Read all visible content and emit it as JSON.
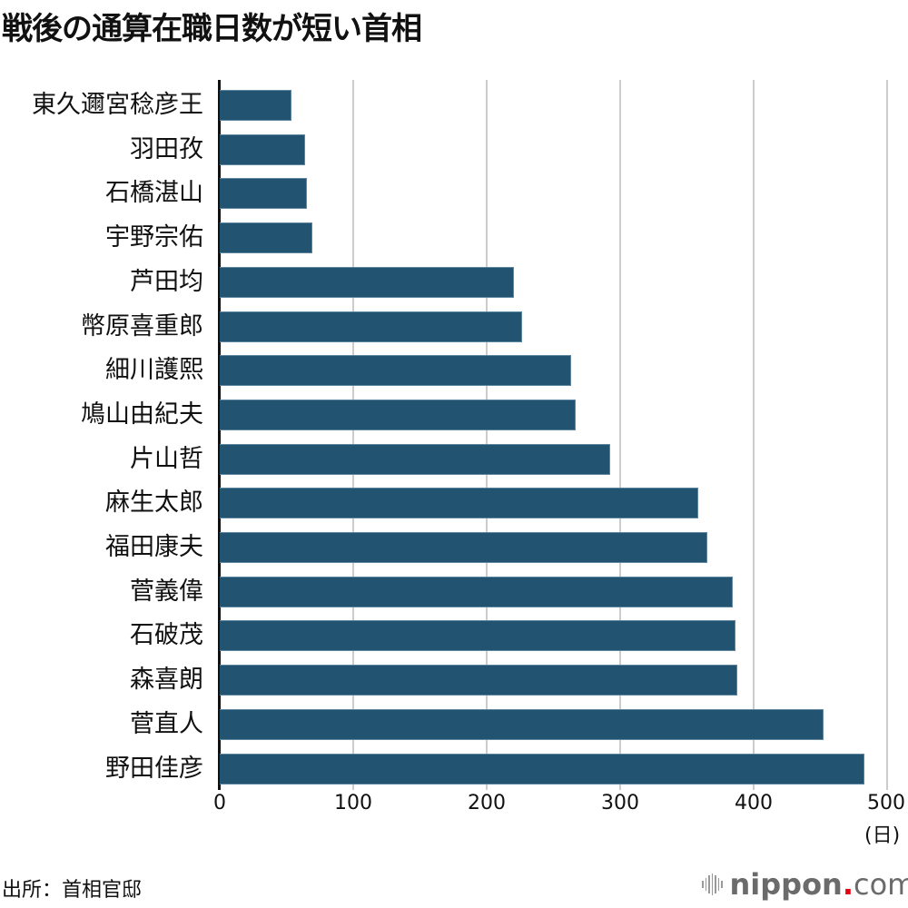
{
  "title": "戦後の通算在職日数が短い首相",
  "chart_data": {
    "type": "bar",
    "orientation": "horizontal",
    "title": "戦後の通算在職日数が短い首相",
    "xlabel": "(日)",
    "ylabel": "",
    "xlim": [
      0,
      500
    ],
    "xticks": [
      "0",
      "100",
      "200",
      "300",
      "400",
      "500"
    ],
    "grid": true,
    "categories": [
      "東久邇宮稔彦王",
      "羽田孜",
      "石橋湛山",
      "宇野宗佑",
      "芦田均",
      "幣原喜重郎",
      "細川護熙",
      "鳩山由紀夫",
      "片山哲",
      "麻生太郎",
      "福田康夫",
      "菅義偉",
      "石破茂",
      "森喜朗",
      "菅直人",
      "野田佳彦"
    ],
    "values": [
      54,
      64,
      65,
      69,
      220,
      226,
      263,
      266,
      292,
      358,
      365,
      384,
      386,
      387,
      452,
      482
    ],
    "bar_color": "#225472"
  },
  "axis": {
    "ticks": [
      "0",
      "100",
      "200",
      "300",
      "400",
      "500"
    ],
    "unit": "(日)"
  },
  "footer": {
    "source": "出所：首相官邸",
    "logo_main": "nippon",
    "logo_dot": ".",
    "logo_com": "com"
  }
}
